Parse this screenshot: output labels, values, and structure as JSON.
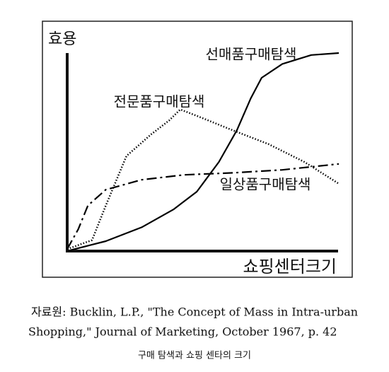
{
  "chart_data": {
    "type": "line",
    "y_label": "효용",
    "x_label": "쇼핑센터크기",
    "xlim": [
      0,
      100
    ],
    "ylim": [
      0,
      100
    ],
    "series": [
      {
        "name": "선매품구매탐색",
        "color": "#000000",
        "style": "solid",
        "x": [
          0,
          14,
          27,
          38.5,
          47,
          55,
          61.5,
          66.5,
          70.5,
          78,
          88.5,
          98.5
        ],
        "values": [
          0,
          5,
          12,
          21,
          30,
          45,
          61,
          77,
          87.5,
          94.5,
          99,
          100
        ]
      },
      {
        "name": "전문품구매탐색",
        "color": "#000000",
        "style": "dotted",
        "x": [
          0,
          9,
          14,
          21.5,
          30.5,
          37,
          41,
          47.5,
          60,
          73,
          86,
          98.5
        ],
        "values": [
          1,
          5.5,
          23,
          48,
          59,
          66,
          71.5,
          68,
          61,
          54,
          45,
          34
        ]
      },
      {
        "name": "일상품구매탐색",
        "color": "#000000",
        "style": "dashdot",
        "x": [
          0,
          4,
          7.5,
          14,
          27,
          42.5,
          60,
          78,
          98.5
        ],
        "values": [
          1,
          11,
          23,
          31,
          36,
          38.5,
          39.5,
          41,
          44
        ]
      }
    ],
    "source": [
      "자료원: Bucklin, L.P., \"The Concept of Mass in Intra-urban",
      "Shopping,\" Journal of Marketing, October 1967, p. 42"
    ],
    "caption": "구매 탐색과 쇼핑 센타의 크기"
  }
}
